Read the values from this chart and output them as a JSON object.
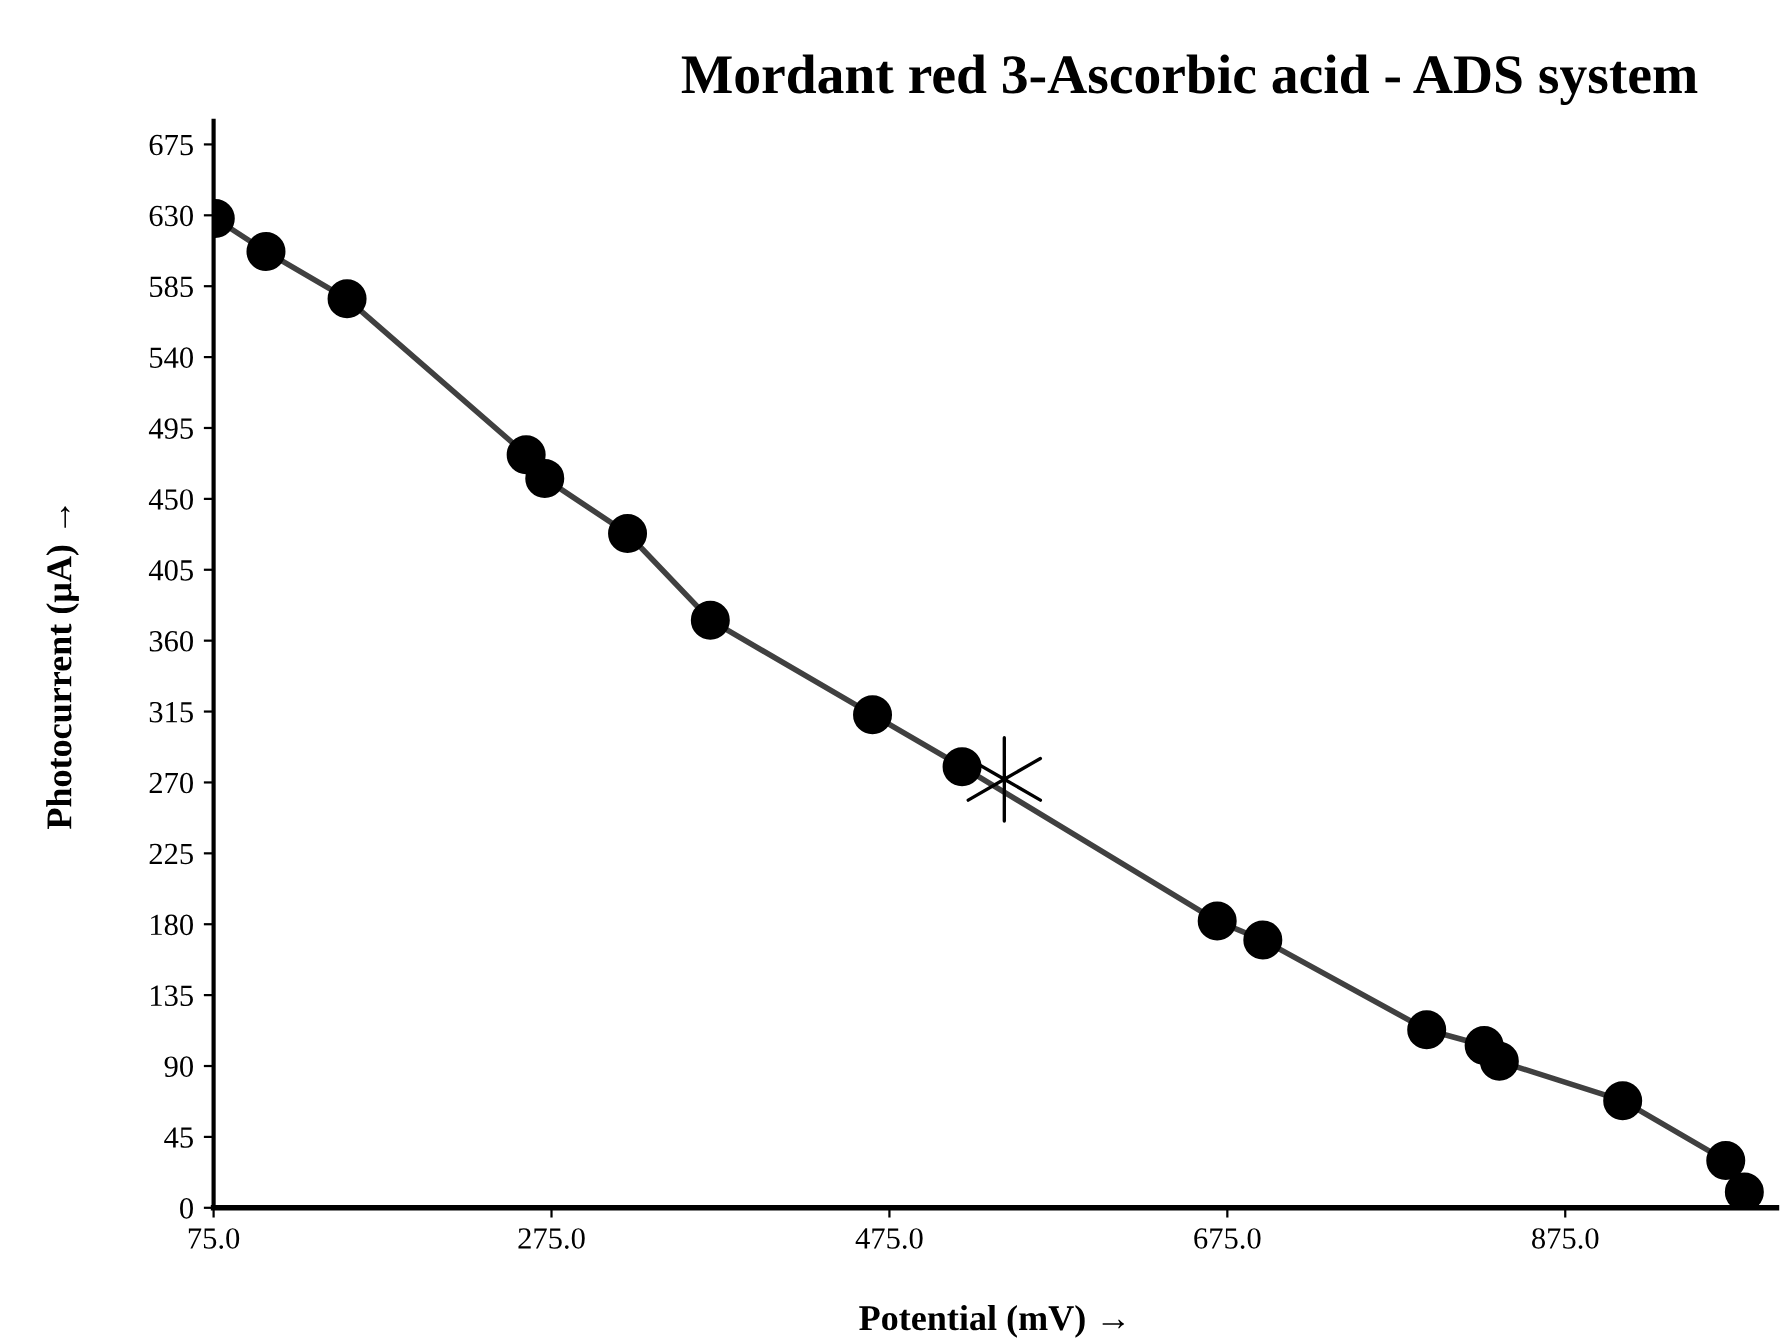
{
  "chart_data": {
    "type": "line",
    "title": "Mordant red 3-Ascorbic acid - ADS system",
    "xlabel": "Potential (mV) →",
    "ylabel": "Photocurrent (μA) →",
    "series": [
      {
        "color": "#000000",
        "marker": "circle",
        "x": [
          76,
          106,
          154,
          260,
          271,
          320,
          369,
          465,
          518,
          669,
          696,
          793,
          827,
          836,
          909,
          970,
          981
        ],
        "values": [
          628,
          607,
          577,
          478,
          463,
          428,
          373,
          313,
          280,
          182,
          170,
          113,
          103,
          93,
          68,
          30,
          10
        ]
      },
      {
        "type": "scatter",
        "color": "#000000",
        "marker": "cross",
        "x": [
          543
        ],
        "values": [
          272
        ]
      }
    ],
    "xlim": [
      75,
      1000
    ],
    "ylim": [
      0,
      690
    ],
    "xticks": [
      {
        "value": 75,
        "label": "75.0"
      },
      {
        "value": 275,
        "label": "275.0"
      },
      {
        "value": 475,
        "label": "475.0"
      },
      {
        "value": 675,
        "label": "675.0"
      },
      {
        "value": 875,
        "label": "875.0"
      }
    ],
    "yticks": [
      0,
      45,
      90,
      135,
      180,
      225,
      270,
      315,
      360,
      405,
      450,
      495,
      540,
      585,
      630,
      675
    ],
    "grid": false,
    "legend": false
  }
}
